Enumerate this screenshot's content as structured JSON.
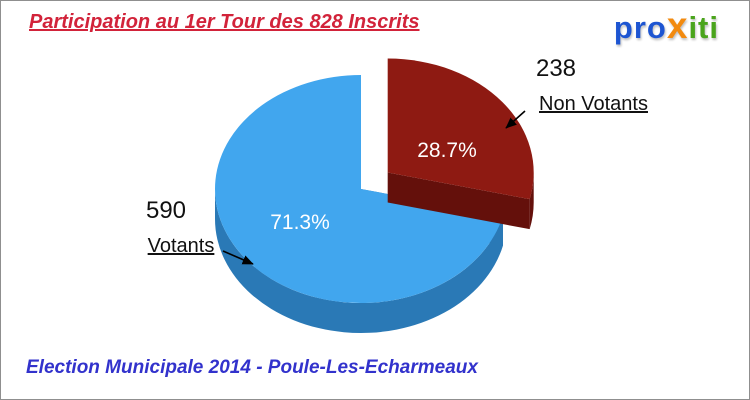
{
  "header": {
    "title": "Participation au 1er Tour des 828 Inscrits"
  },
  "logo": {
    "part1": "pro",
    "part2": "x",
    "part3": "iti"
  },
  "callouts": {
    "votants": {
      "value": "590",
      "label": "Votants"
    },
    "non_votants": {
      "value": "238",
      "label": "Non Votants"
    }
  },
  "footer": {
    "text": "Election Municipale 2014 - Poule-Les-Echarmeaux"
  },
  "chart_data": {
    "type": "pie",
    "title": "Participation au 1er Tour des 828 Inscrits",
    "footer": "Election Municipale 2014 - Poule-Les-Echarmeaux",
    "total_inscrits": 828,
    "labels": [
      "Non Votants",
      "Votants"
    ],
    "values": [
      238,
      590
    ],
    "percents": [
      28.7,
      71.3
    ],
    "percent_labels": [
      "28.7%",
      "71.3%"
    ],
    "colors": [
      "#8e1a12",
      "#41a6ee"
    ],
    "side_colors": [
      "#64100b",
      "#2a79b6"
    ],
    "explode": [
      true,
      false
    ],
    "start_angle_deg": -90,
    "direction": "clockwise",
    "effect": "3d",
    "legend_position": "none",
    "label_style": "percent-inside-with-callouts"
  }
}
